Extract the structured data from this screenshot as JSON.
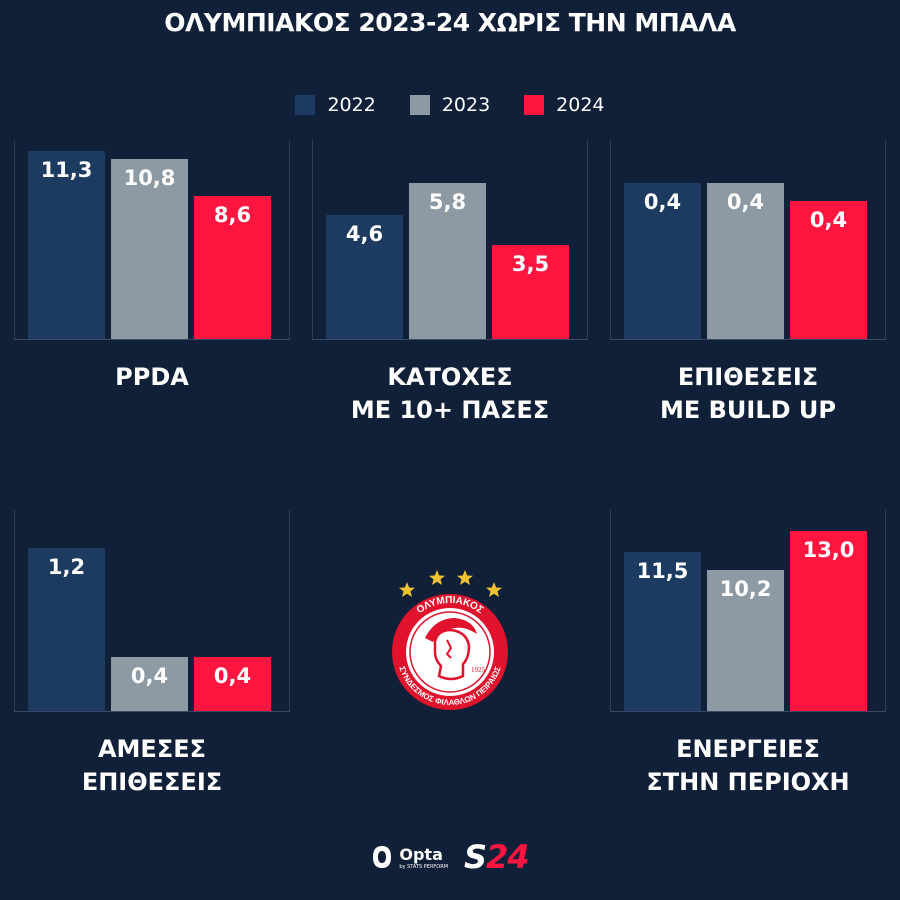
{
  "title": "ΟΛΥΜΠΙΑΚΟΣ 2023-24 ΧΩΡΙΣ ΤΗΝ ΜΠΑΛΑ",
  "colors": {
    "background": "#102038",
    "series_2022": "#1d3a60",
    "series_2023": "#8d9aa3",
    "series_2024": "#ff1640"
  },
  "chart_data": {
    "type": "bar",
    "legend": [
      "2022",
      "2023",
      "2024"
    ],
    "panels": [
      {
        "title_lines": [
          "PPDA"
        ],
        "values": [
          11.3,
          10.8,
          8.6
        ],
        "labels": [
          "11,3",
          "10,8",
          "8,6"
        ],
        "ylim": [
          0,
          11.3
        ]
      },
      {
        "title_lines": [
          "ΚΑΤΟΧΕΣ",
          "ΜΕ 10+ ΠΑΣΕΣ"
        ],
        "values": [
          4.6,
          5.8,
          3.5
        ],
        "labels": [
          "4,6",
          "5,8",
          "3,5"
        ],
        "ylim": [
          0,
          7.0
        ]
      },
      {
        "title_lines": [
          "ΕΠΙΘΕΣΕΙΣ",
          "ΜΕ BUILD UP"
        ],
        "values": [
          0.44,
          0.44,
          0.39
        ],
        "labels": [
          "0,4",
          "0,4",
          "0,4"
        ],
        "ylim": [
          0,
          0.53
        ]
      },
      {
        "title_lines": [
          "ΑΜΕΣΕΣ",
          "ΕΠΙΘΕΣΕΙΣ"
        ],
        "values": [
          1.2,
          0.4,
          0.4
        ],
        "labels": [
          "1,2",
          "0,4",
          "0,4"
        ],
        "ylim": [
          0,
          1.4
        ]
      },
      {
        "title_lines": [
          "ΕΝΕΡΓΕΙΕΣ",
          "ΣΤΗΝ ΠΕΡΙΟΧΗ"
        ],
        "values": [
          11.5,
          10.2,
          13.0
        ],
        "labels": [
          "11,5",
          "10,2",
          "13,0"
        ],
        "ylim": [
          0,
          13.7
        ]
      }
    ]
  },
  "crest": {
    "stars": 4,
    "text_top": "ΟΛΥΜΠΙΑΚΟΣ",
    "text_bottom": "ΣΥΝΔΕΣΜΟΣ ΦΙΛΑΘΛΩΝ ΠΕΙΡΑΙΩΣ",
    "year": "1925"
  },
  "footer": {
    "opta": "Opta",
    "opta_sub": "by STATS PERFORM",
    "brand": "S24"
  }
}
